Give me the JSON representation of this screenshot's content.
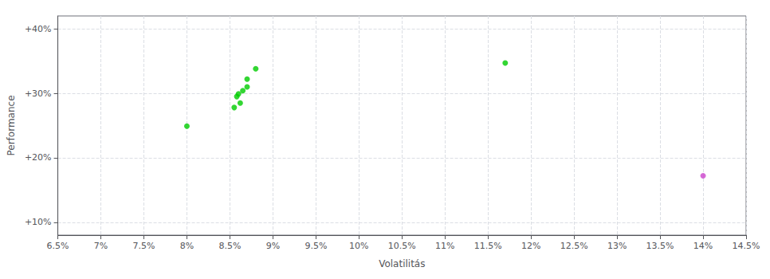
{
  "chart_data": {
    "type": "scatter",
    "xlabel": "Volatilitás",
    "ylabel": "Performance",
    "series": [
      {
        "color": "#00cc00",
        "x": [
          0.088,
          0.087,
          0.087,
          0.0865,
          0.086,
          0.0858,
          0.0862,
          0.0855,
          0.08,
          0.117
        ],
        "values": [
          0.338,
          0.322,
          0.31,
          0.304,
          0.299,
          0.295,
          0.285,
          0.278,
          0.249,
          0.347
        ]
      },
      {
        "color": "#cc44cc",
        "x": [
          0.14
        ],
        "values": [
          0.172
        ]
      }
    ],
    "xlim": [
      0.065,
      0.145
    ],
    "ylim": [
      0.08,
      0.42
    ],
    "xticks": [
      {
        "value": 0.065,
        "label": "6.5%"
      },
      {
        "value": 0.07,
        "label": "7%"
      },
      {
        "value": 0.075,
        "label": "7.5%"
      },
      {
        "value": 0.08,
        "label": "8%"
      },
      {
        "value": 0.085,
        "label": "8.5%"
      },
      {
        "value": 0.09,
        "label": "9%"
      },
      {
        "value": 0.095,
        "label": "9.5%"
      },
      {
        "value": 0.1,
        "label": "10%"
      },
      {
        "value": 0.105,
        "label": "10.5%"
      },
      {
        "value": 0.11,
        "label": "11%"
      },
      {
        "value": 0.115,
        "label": "11.5%"
      },
      {
        "value": 0.12,
        "label": "12%"
      },
      {
        "value": 0.125,
        "label": "12.5%"
      },
      {
        "value": 0.13,
        "label": "13%"
      },
      {
        "value": 0.135,
        "label": "13.5%"
      },
      {
        "value": 0.14,
        "label": "14%"
      },
      {
        "value": 0.145,
        "label": "14.5%"
      }
    ],
    "yticks": [
      {
        "value": 0.1,
        "label": "+10%"
      },
      {
        "value": 0.2,
        "label": "+20%"
      },
      {
        "value": 0.3,
        "label": "+30%"
      },
      {
        "value": 0.4,
        "label": "+40%"
      }
    ],
    "grid": true
  }
}
